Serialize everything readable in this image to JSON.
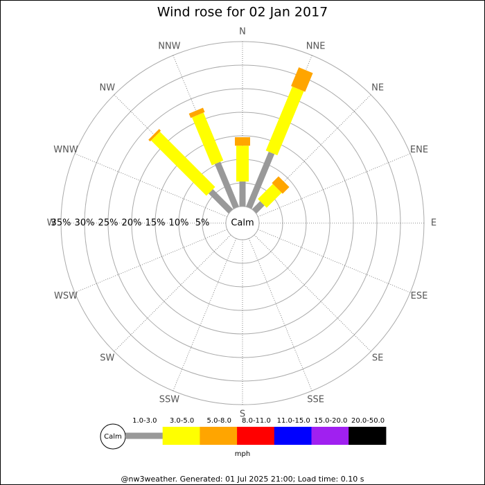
{
  "chart_data": {
    "type": "windrose",
    "title": "Wind rose for 02 Jan 2017",
    "categories": [
      "N",
      "NNE",
      "NE",
      "ENE",
      "E",
      "ESE",
      "SE",
      "SSE",
      "S",
      "SSW",
      "SW",
      "WSW",
      "W",
      "WNW",
      "NW",
      "NNW"
    ],
    "series": [
      {
        "name": "1.0-3.0",
        "color": "#999999",
        "values": [
          5.3,
          12.6,
          2.4,
          0,
          0,
          0,
          0,
          0,
          0,
          0,
          0,
          0,
          0,
          0,
          6.0,
          10.3
        ]
      },
      {
        "name": "3.0-5.0",
        "color": "#ffff00",
        "values": [
          7.6,
          14.7,
          4.5,
          0,
          0,
          0,
          0,
          0,
          0,
          0,
          0,
          0,
          0,
          0,
          16.6,
          11.0
        ]
      },
      {
        "name": "5.0-8.0",
        "color": "#ffa500",
        "values": [
          1.8,
          4.3,
          2.0,
          0,
          0,
          0,
          0,
          0,
          0,
          0,
          0,
          0,
          0,
          0,
          0.5,
          1.0
        ]
      },
      {
        "name": "8.0-11.0",
        "color": "#ff0000",
        "values": [
          0,
          0,
          0,
          0,
          0,
          0,
          0,
          0,
          0,
          0,
          0,
          0,
          0,
          0,
          0,
          0
        ]
      },
      {
        "name": "11.0-15.0",
        "color": "#0000ff",
        "values": [
          0,
          0,
          0,
          0,
          0,
          0,
          0,
          0,
          0,
          0,
          0,
          0,
          0,
          0,
          0,
          0
        ]
      },
      {
        "name": "15.0-20.0",
        "color": "#a020f0",
        "values": [
          0,
          0,
          0,
          0,
          0,
          0,
          0,
          0,
          0,
          0,
          0,
          0,
          0,
          0,
          0,
          0
        ]
      },
      {
        "name": "20.0-50.0",
        "color": "#000000",
        "values": [
          0,
          0,
          0,
          0,
          0,
          0,
          0,
          0,
          0,
          0,
          0,
          0,
          0,
          0,
          0,
          0
        ]
      }
    ],
    "rlim": [
      0,
      35
    ],
    "rticks": [
      {
        "value": 5,
        "label": "5%"
      },
      {
        "value": 10,
        "label": "10%"
      },
      {
        "value": 15,
        "label": "15%"
      },
      {
        "value": 20,
        "label": "20%"
      },
      {
        "value": 25,
        "label": "25%"
      },
      {
        "value": 30,
        "label": "30%"
      },
      {
        "value": 35,
        "label": "35%"
      }
    ],
    "calm_label": "Calm",
    "unit": "mph"
  },
  "footer": "@nw3weather. Generated: 01 Jul 2025 21:00; Load time: 0.10 s"
}
